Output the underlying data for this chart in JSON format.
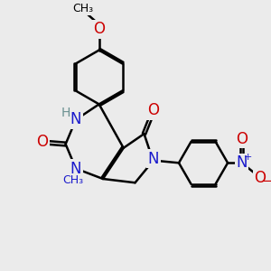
{
  "bg_color": "#ebebeb",
  "atom_colors": {
    "C": "#000000",
    "N": "#1a1acc",
    "O": "#cc0000",
    "H": "#6a9090"
  },
  "bond_color": "#000000",
  "bond_width": 1.8,
  "font_size_atoms": 12,
  "font_size_small": 10
}
